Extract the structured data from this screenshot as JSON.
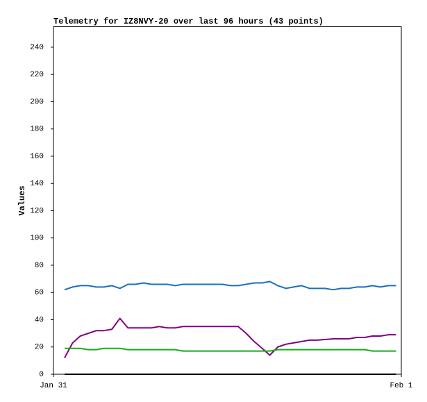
{
  "chart_data": {
    "type": "line",
    "title": "Telemetry for IZ8NVY-20 over last 96 hours (43 points)",
    "y_label": "Values",
    "x": [
      0.032,
      0.055,
      0.077,
      0.1,
      0.123,
      0.145,
      0.168,
      0.191,
      0.214,
      0.236,
      0.259,
      0.282,
      0.304,
      0.327,
      0.35,
      0.372,
      0.395,
      0.418,
      0.441,
      0.463,
      0.486,
      0.509,
      0.531,
      0.554,
      0.577,
      0.6,
      0.622,
      0.645,
      0.668,
      0.69,
      0.713,
      0.736,
      0.758,
      0.781,
      0.804,
      0.827,
      0.849,
      0.872,
      0.895,
      0.917,
      0.94,
      0.963,
      0.985
    ],
    "xlim": [
      0,
      1
    ],
    "xticks": [
      {
        "value": 0,
        "label": "Jan 31"
      },
      {
        "value": 1,
        "label": "Feb 1"
      }
    ],
    "ylim": [
      0,
      255
    ],
    "yticks": [
      0,
      20,
      40,
      60,
      80,
      100,
      120,
      140,
      160,
      180,
      200,
      220,
      240
    ],
    "series": [
      {
        "color": "#1a6ec0",
        "values": [
          62,
          64,
          65,
          65,
          64,
          64,
          65,
          63,
          66,
          66,
          67,
          66,
          66,
          66,
          65,
          66,
          66,
          66,
          66,
          66,
          66,
          65,
          65,
          66,
          67,
          67,
          68,
          65,
          63,
          64,
          65,
          63,
          63,
          63,
          62,
          63,
          63,
          64,
          64,
          65,
          64,
          65,
          65
        ]
      },
      {
        "color": "#800080",
        "values": [
          12,
          23,
          28,
          30,
          32,
          32,
          33,
          41,
          34,
          34,
          34,
          34,
          35,
          34,
          34,
          35,
          35,
          35,
          35,
          35,
          35,
          35,
          35,
          30,
          24,
          19,
          14,
          20,
          22,
          23,
          24,
          25,
          25,
          25.5,
          26,
          26,
          26,
          27,
          27,
          28,
          28,
          29,
          29
        ]
      },
      {
        "color": "#1aaa1a",
        "values": [
          19,
          19,
          19,
          18,
          18,
          19,
          19,
          19,
          18,
          18,
          18,
          18,
          18,
          18,
          18,
          17,
          17,
          17,
          17,
          17,
          17,
          17,
          17,
          17,
          17,
          17,
          17,
          18,
          18,
          18,
          18,
          18,
          18,
          18,
          18,
          18,
          18,
          18,
          18,
          17,
          17,
          17,
          17
        ]
      },
      {
        "color": "#000000",
        "values": [
          0,
          0,
          0,
          0,
          0,
          0,
          0,
          0,
          0,
          0,
          0,
          0,
          0,
          0,
          0,
          0,
          0,
          0,
          0,
          0,
          0,
          0,
          0,
          0,
          0,
          0,
          0,
          0,
          0,
          0,
          0,
          0,
          0,
          0,
          0,
          0,
          0,
          0,
          0,
          0,
          0,
          0,
          0
        ]
      }
    ]
  }
}
